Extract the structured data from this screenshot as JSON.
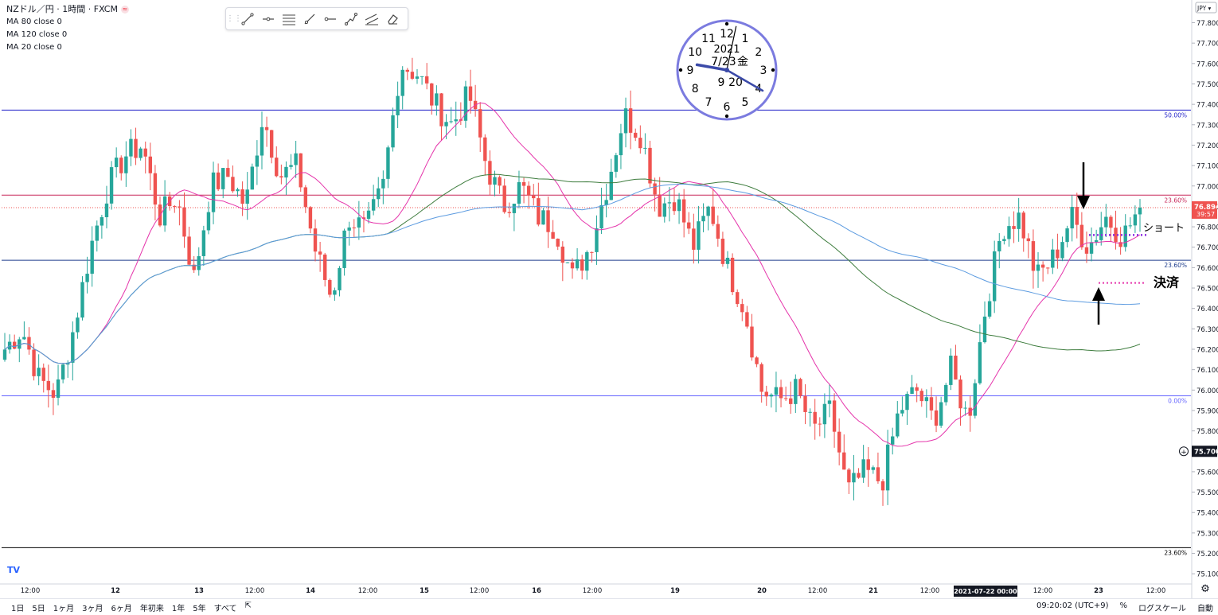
{
  "legend": {
    "title": "NZドル／円 · 1時間 · FXCM",
    "ma": [
      "MA 80 close 0",
      "MA 120 close 0",
      "MA 20 close 0"
    ]
  },
  "toolbar": {
    "icons": [
      "trend-line-icon",
      "horizontal-ray-icon",
      "fib-retracement-icon",
      "ray-icon",
      "horizontal-line-icon",
      "path-icon",
      "parallel-channel-icon",
      "eraser-icon"
    ]
  },
  "clock": {
    "numbers": [
      "12",
      "1",
      "2",
      "3",
      "4",
      "5",
      "6",
      "7",
      "8",
      "9",
      "10",
      "11"
    ],
    "year": "2021",
    "date": "7/23",
    "weekday": "金",
    "hour_label": "9",
    "minute_label": "20"
  },
  "annotations": {
    "short_label": "ショート",
    "settle_label": "決済"
  },
  "price_scale": {
    "currency": "JPY",
    "current_price": "76.894",
    "countdown": "39:57",
    "crosshair_price": "75.700"
  },
  "time_axis": {
    "crosshair_label": "2021-07-22  00:00",
    "labels": [
      "12:00",
      "12",
      "13",
      "12:00",
      "14",
      "12:00",
      "15",
      "12:00",
      "16",
      "12:00",
      "19",
      "20",
      "12:00",
      "21",
      "12:00",
      "12:00",
      "23",
      "12:00"
    ]
  },
  "bottom": {
    "ranges": [
      "1日",
      "5日",
      "1ヶ月",
      "3ヶ月",
      "6ヶ月",
      "年初来",
      "1年",
      "5年",
      "すべて"
    ],
    "time": "09:20:02 (UTC+9)",
    "percent": "%",
    "log_scale": "ログスケール",
    "auto": "自動"
  },
  "chart_data": {
    "type": "candlestick",
    "title": "NZドル／円 · 1時間 · FXCM",
    "ylim": [
      75.05,
      77.88
    ],
    "y_ticks": [
      75.1,
      75.2,
      75.3,
      75.4,
      75.5,
      75.6,
      75.7,
      75.8,
      75.9,
      76.0,
      76.1,
      76.2,
      76.3,
      76.4,
      76.5,
      76.6,
      76.7,
      76.8,
      76.9,
      77.0,
      77.1,
      77.2,
      77.3,
      77.4,
      77.5,
      77.6,
      77.7,
      77.8
    ],
    "horizontal_lines": [
      {
        "price": 77.372,
        "color": "#1e1ec8",
        "label": "50.00%"
      },
      {
        "price": 76.955,
        "color": "#c8285a",
        "label": "23.60%"
      },
      {
        "price": 76.636,
        "color": "#1e3c8c",
        "label": "23.60%"
      },
      {
        "price": 75.972,
        "color": "#6464ff",
        "label": "0.00%"
      },
      {
        "price": 75.228,
        "color": "#000000",
        "label": "23.60%"
      }
    ],
    "last_price_line": 76.894,
    "ohlc_anchor_closes": [
      76.2,
      76.3,
      76.05,
      75.98,
      76.3,
      76.7,
      77.0,
      77.15,
      77.2,
      76.85,
      76.95,
      76.55,
      77.0,
      77.05,
      76.9,
      77.35,
      77.05,
      77.1,
      76.7,
      76.45,
      76.85,
      76.78,
      77.0,
      77.6,
      77.55,
      77.4,
      77.3,
      77.45,
      77.1,
      76.9,
      77.0,
      76.85,
      76.8,
      76.55,
      76.7,
      77.0,
      77.35,
      77.25,
      76.9,
      76.95,
      76.7,
      76.9,
      76.6,
      76.4,
      76.0,
      75.95,
      76.0,
      75.8,
      75.9,
      75.5,
      75.6,
      75.55,
      75.9,
      76.0,
      75.85,
      76.1,
      75.85,
      76.4,
      76.8,
      76.85,
      76.55,
      76.65,
      76.85,
      76.7,
      76.85,
      76.75,
      76.894
    ],
    "ma_series": [
      {
        "name": "MA 20 close 0",
        "color": "#e535ab"
      },
      {
        "name": "MA 80 close 0",
        "color": "#3d7c3d"
      },
      {
        "name": "MA 120 close 0",
        "color": "#5c9be0"
      }
    ],
    "up_color": "#26a69a",
    "down_color": "#ef5350"
  }
}
